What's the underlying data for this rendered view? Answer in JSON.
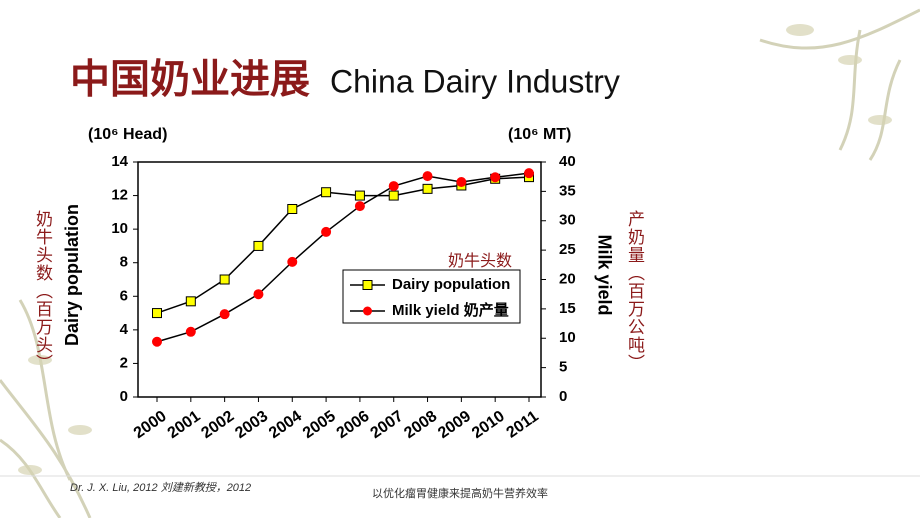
{
  "title_cn": "中国奶业进展",
  "title_en": "China Dairy Industry",
  "chart_data": {
    "type": "line",
    "left_unit": "(10⁶ Head)",
    "right_unit": "(10⁶ MT)",
    "ylabel": "Dairy population",
    "y2label": "Milk yield",
    "ylabel_cn": "奶牛头数（百万头）",
    "y2label_cn": "产奶量（百万公吨）",
    "annotation": "奶牛头数",
    "categories": [
      "2000",
      "2001",
      "2002",
      "2003",
      "2004",
      "2005",
      "2006",
      "2007",
      "2008",
      "2009",
      "2010",
      "2011"
    ],
    "series": [
      {
        "name": "Dairy population",
        "color": "#ffff00",
        "marker": "square",
        "values": [
          5.0,
          5.7,
          7.0,
          9.0,
          11.2,
          12.2,
          12.0,
          12.0,
          12.4,
          12.6,
          13.0,
          13.1
        ]
      },
      {
        "name": "Milk yield 奶产量",
        "color": "#ff0000",
        "marker": "circle",
        "axis": "y2",
        "values": [
          9.4,
          11.1,
          14.1,
          17.5,
          23.0,
          28.1,
          32.5,
          35.9,
          37.6,
          36.6,
          37.4,
          38.1
        ]
      }
    ],
    "ylim": [
      0,
      14
    ],
    "yticks": [
      0,
      2,
      4,
      6,
      8,
      10,
      12,
      14
    ],
    "y2lim": [
      0,
      40
    ],
    "y2ticks": [
      0,
      5,
      10,
      15,
      20,
      25,
      30,
      35,
      40
    ],
    "grid": false
  },
  "footer": {
    "citation": "Dr. J. X. Liu, 2012 刘建新教授，2012",
    "caption": "以优化瘤胃健康来提高奶牛营养效率"
  }
}
